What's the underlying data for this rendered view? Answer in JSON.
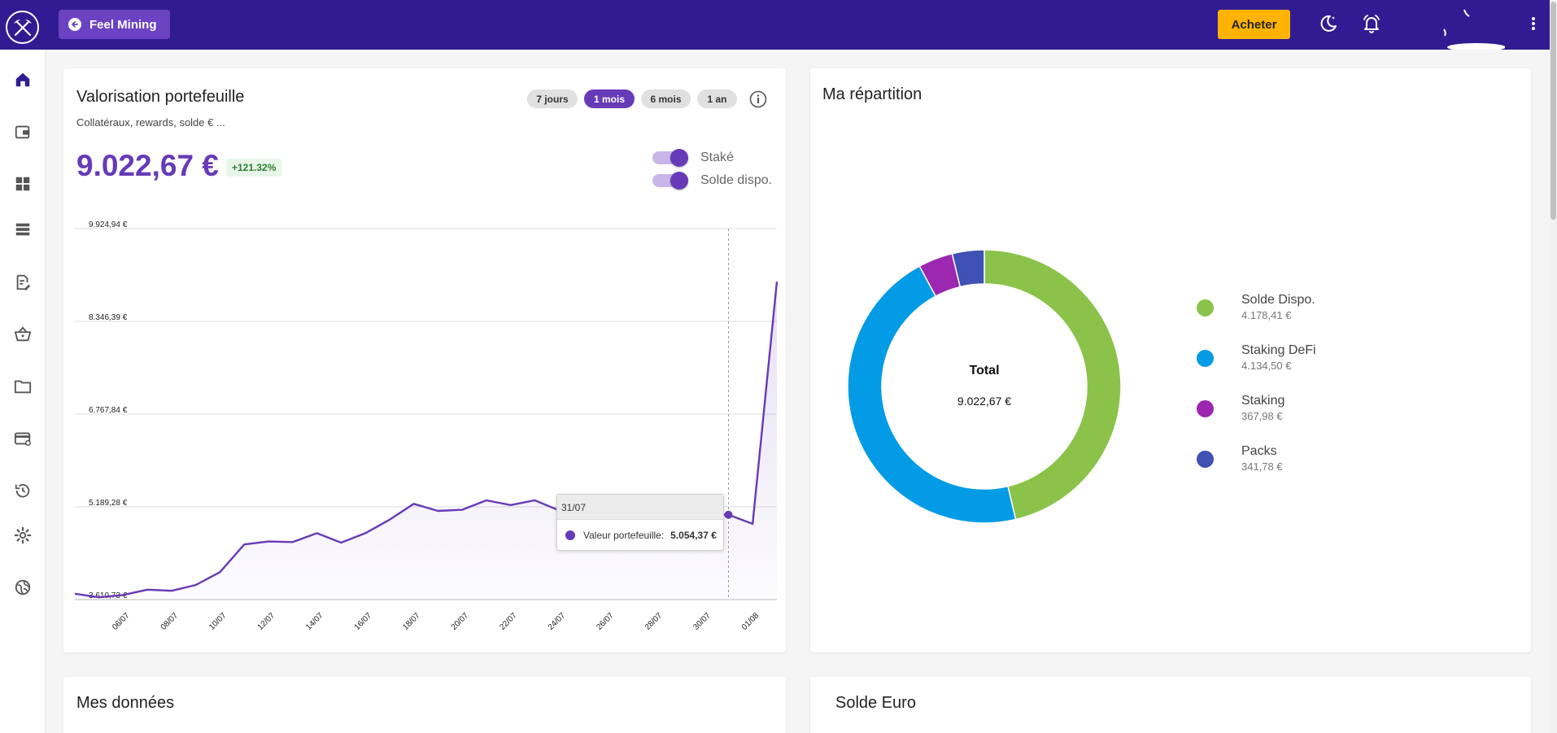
{
  "topbar": {
    "back_label": "Feel Mining",
    "buy_label": "Acheter"
  },
  "sidebar": {
    "items": [
      {
        "icon": "home-icon"
      },
      {
        "icon": "wallet-icon"
      },
      {
        "icon": "dashboard-icon"
      },
      {
        "icon": "storage-icon"
      },
      {
        "icon": "document-edit-icon"
      },
      {
        "icon": "basket-icon"
      },
      {
        "icon": "folder-icon"
      },
      {
        "icon": "card-icon"
      },
      {
        "icon": "history-icon"
      },
      {
        "icon": "settings-icon"
      },
      {
        "icon": "globe-icon"
      }
    ]
  },
  "valuation": {
    "title": "Valorisation portefeuille",
    "subtitle": "Collatéraux, rewards, solde € ...",
    "periods": [
      "7 jours",
      "1 mois",
      "6 mois",
      "1 an"
    ],
    "active_period": "1 mois",
    "value": "9.022,67 €",
    "change": "+121.32%",
    "toggles": [
      {
        "label": "Staké",
        "on": true
      },
      {
        "label": "Solde dispo.",
        "on": true
      }
    ],
    "tooltip": {
      "date": "31/07",
      "series": "Valeur portefeuille:",
      "value": "5.054,37 €"
    }
  },
  "chart_data": {
    "type": "area",
    "series": [
      {
        "name": "Valeur portefeuille",
        "color": "#673ab7"
      }
    ],
    "x_ticks": [
      "06/07",
      "08/07",
      "10/07",
      "12/07",
      "14/07",
      "16/07",
      "18/07",
      "20/07",
      "22/07",
      "24/07",
      "26/07",
      "28/07",
      "30/07",
      "01/08"
    ],
    "y_ticks": [
      "9.924,94 €",
      "8.346,39 €",
      "6.767,84 €",
      "5.189,28 €",
      "3.610,73 €"
    ],
    "ylim": [
      3610.73,
      9924.94
    ],
    "points": [
      [
        "04/07",
        3710
      ],
      [
        "05/07",
        3650
      ],
      [
        "06/07",
        3690
      ],
      [
        "07/07",
        3780
      ],
      [
        "08/07",
        3760
      ],
      [
        "09/07",
        3860
      ],
      [
        "10/07",
        4080
      ],
      [
        "11/07",
        4550
      ],
      [
        "12/07",
        4600
      ],
      [
        "13/07",
        4590
      ],
      [
        "14/07",
        4740
      ],
      [
        "15/07",
        4580
      ],
      [
        "16/07",
        4740
      ],
      [
        "17/07",
        4970
      ],
      [
        "18/07",
        5240
      ],
      [
        "19/07",
        5120
      ],
      [
        "20/07",
        5140
      ],
      [
        "21/07",
        5300
      ],
      [
        "22/07",
        5220
      ],
      [
        "23/07",
        5300
      ],
      [
        "24/07",
        5130
      ],
      [
        "25/07",
        5090
      ],
      [
        "26/07",
        5080
      ],
      [
        "27/07",
        5100
      ],
      [
        "28/07",
        5070
      ],
      [
        "29/07",
        5060
      ],
      [
        "30/07",
        5060
      ],
      [
        "31/07",
        5054.37
      ],
      [
        "01/08",
        4900
      ],
      [
        "02/08",
        9022.67
      ]
    ],
    "highlight": "31/07",
    "grid": true
  },
  "repartition": {
    "title": "Ma répartition",
    "total_label": "Total",
    "total_value": "9.022,67 €",
    "slices": [
      {
        "name": "Solde Dispo.",
        "label": "4.178,41 €",
        "value": 4178.41,
        "color": "#8bc34a"
      },
      {
        "name": "Staking DeFi",
        "label": "4.134,50 €",
        "value": 4134.5,
        "color": "#039be5"
      },
      {
        "name": "Staking",
        "label": "367,98 €",
        "value": 367.98,
        "color": "#9c27b0"
      },
      {
        "name": "Packs",
        "label": "341,78 €",
        "value": 341.78,
        "color": "#3f51b5"
      }
    ]
  },
  "donnees": {
    "title": "Mes données"
  },
  "solde": {
    "title": "Solde Euro"
  }
}
